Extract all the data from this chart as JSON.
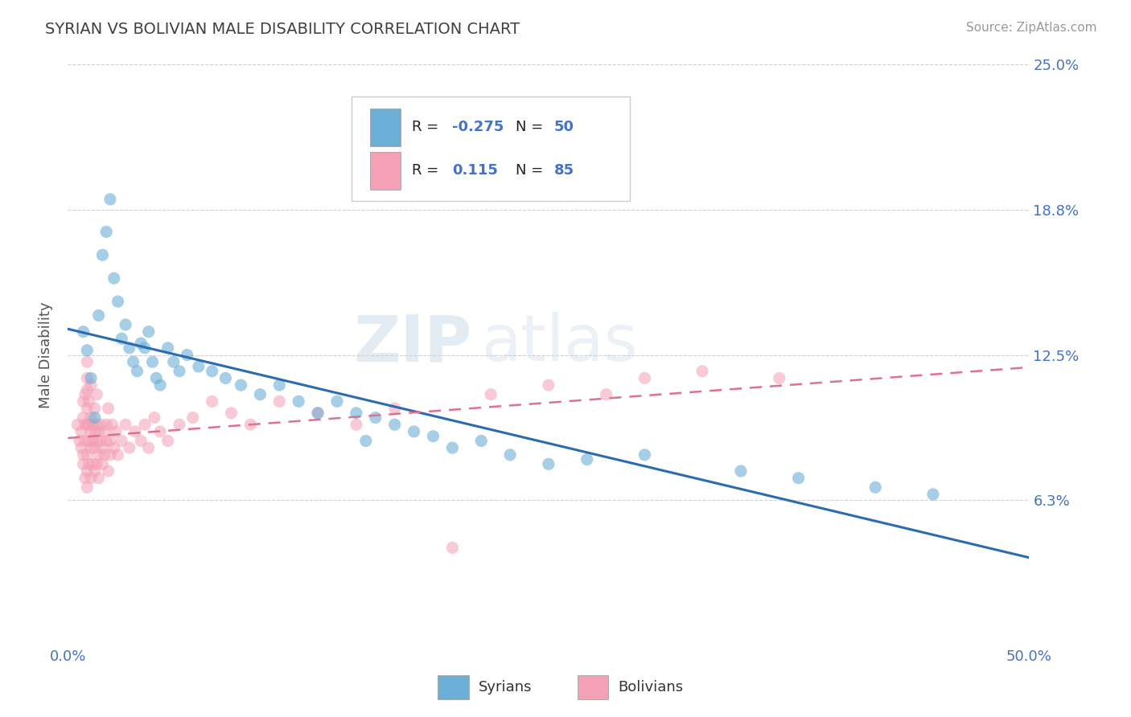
{
  "title": "SYRIAN VS BOLIVIAN MALE DISABILITY CORRELATION CHART",
  "source": "Source: ZipAtlas.com",
  "ylabel": "Male Disability",
  "xlim": [
    0,
    0.5
  ],
  "ylim": [
    0,
    0.25
  ],
  "xticks": [
    0.0,
    0.1,
    0.2,
    0.3,
    0.4,
    0.5
  ],
  "yticks": [
    0.0,
    0.0625,
    0.125,
    0.1875,
    0.25
  ],
  "ytick_labels_right": [
    "",
    "6.3%",
    "12.5%",
    "18.8%",
    "25.0%"
  ],
  "syrian_R": -0.275,
  "syrian_N": 50,
  "bolivian_R": 0.115,
  "bolivian_N": 85,
  "syrian_color": "#6baed6",
  "bolivian_color": "#f4a0b5",
  "syrian_scatter": [
    [
      0.008,
      0.135
    ],
    [
      0.01,
      0.127
    ],
    [
      0.012,
      0.115
    ],
    [
      0.014,
      0.098
    ],
    [
      0.016,
      0.142
    ],
    [
      0.018,
      0.168
    ],
    [
      0.02,
      0.178
    ],
    [
      0.022,
      0.192
    ],
    [
      0.024,
      0.158
    ],
    [
      0.026,
      0.148
    ],
    [
      0.028,
      0.132
    ],
    [
      0.03,
      0.138
    ],
    [
      0.032,
      0.128
    ],
    [
      0.034,
      0.122
    ],
    [
      0.036,
      0.118
    ],
    [
      0.038,
      0.13
    ],
    [
      0.04,
      0.128
    ],
    [
      0.042,
      0.135
    ],
    [
      0.044,
      0.122
    ],
    [
      0.046,
      0.115
    ],
    [
      0.048,
      0.112
    ],
    [
      0.052,
      0.128
    ],
    [
      0.055,
      0.122
    ],
    [
      0.058,
      0.118
    ],
    [
      0.062,
      0.125
    ],
    [
      0.068,
      0.12
    ],
    [
      0.075,
      0.118
    ],
    [
      0.082,
      0.115
    ],
    [
      0.09,
      0.112
    ],
    [
      0.1,
      0.108
    ],
    [
      0.11,
      0.112
    ],
    [
      0.12,
      0.105
    ],
    [
      0.13,
      0.1
    ],
    [
      0.14,
      0.105
    ],
    [
      0.15,
      0.1
    ],
    [
      0.155,
      0.088
    ],
    [
      0.16,
      0.098
    ],
    [
      0.17,
      0.095
    ],
    [
      0.18,
      0.092
    ],
    [
      0.19,
      0.09
    ],
    [
      0.2,
      0.085
    ],
    [
      0.215,
      0.088
    ],
    [
      0.23,
      0.082
    ],
    [
      0.25,
      0.078
    ],
    [
      0.27,
      0.08
    ],
    [
      0.3,
      0.082
    ],
    [
      0.35,
      0.075
    ],
    [
      0.38,
      0.072
    ],
    [
      0.42,
      0.068
    ],
    [
      0.45,
      0.065
    ]
  ],
  "bolivian_scatter": [
    [
      0.005,
      0.095
    ],
    [
      0.006,
      0.088
    ],
    [
      0.007,
      0.085
    ],
    [
      0.007,
      0.092
    ],
    [
      0.008,
      0.078
    ],
    [
      0.008,
      0.082
    ],
    [
      0.008,
      0.098
    ],
    [
      0.008,
      0.105
    ],
    [
      0.009,
      0.088
    ],
    [
      0.009,
      0.095
    ],
    [
      0.009,
      0.072
    ],
    [
      0.009,
      0.108
    ],
    [
      0.01,
      0.082
    ],
    [
      0.01,
      0.075
    ],
    [
      0.01,
      0.095
    ],
    [
      0.01,
      0.102
    ],
    [
      0.01,
      0.11
    ],
    [
      0.01,
      0.068
    ],
    [
      0.01,
      0.115
    ],
    [
      0.01,
      0.122
    ],
    [
      0.011,
      0.088
    ],
    [
      0.011,
      0.095
    ],
    [
      0.011,
      0.078
    ],
    [
      0.011,
      0.105
    ],
    [
      0.012,
      0.092
    ],
    [
      0.012,
      0.085
    ],
    [
      0.012,
      0.098
    ],
    [
      0.012,
      0.112
    ],
    [
      0.012,
      0.072
    ],
    [
      0.013,
      0.088
    ],
    [
      0.013,
      0.095
    ],
    [
      0.013,
      0.078
    ],
    [
      0.014,
      0.092
    ],
    [
      0.014,
      0.085
    ],
    [
      0.014,
      0.102
    ],
    [
      0.014,
      0.075
    ],
    [
      0.015,
      0.088
    ],
    [
      0.015,
      0.095
    ],
    [
      0.015,
      0.078
    ],
    [
      0.015,
      0.108
    ],
    [
      0.016,
      0.082
    ],
    [
      0.016,
      0.092
    ],
    [
      0.016,
      0.072
    ],
    [
      0.017,
      0.088
    ],
    [
      0.017,
      0.095
    ],
    [
      0.018,
      0.085
    ],
    [
      0.018,
      0.078
    ],
    [
      0.019,
      0.092
    ],
    [
      0.019,
      0.082
    ],
    [
      0.02,
      0.088
    ],
    [
      0.02,
      0.095
    ],
    [
      0.021,
      0.102
    ],
    [
      0.021,
      0.075
    ],
    [
      0.022,
      0.088
    ],
    [
      0.022,
      0.082
    ],
    [
      0.023,
      0.095
    ],
    [
      0.024,
      0.085
    ],
    [
      0.025,
      0.092
    ],
    [
      0.026,
      0.082
    ],
    [
      0.028,
      0.088
    ],
    [
      0.03,
      0.095
    ],
    [
      0.032,
      0.085
    ],
    [
      0.035,
      0.092
    ],
    [
      0.038,
      0.088
    ],
    [
      0.04,
      0.095
    ],
    [
      0.042,
      0.085
    ],
    [
      0.045,
      0.098
    ],
    [
      0.048,
      0.092
    ],
    [
      0.052,
      0.088
    ],
    [
      0.058,
      0.095
    ],
    [
      0.065,
      0.098
    ],
    [
      0.075,
      0.105
    ],
    [
      0.085,
      0.1
    ],
    [
      0.095,
      0.095
    ],
    [
      0.11,
      0.105
    ],
    [
      0.13,
      0.1
    ],
    [
      0.15,
      0.095
    ],
    [
      0.17,
      0.102
    ],
    [
      0.2,
      0.042
    ],
    [
      0.22,
      0.108
    ],
    [
      0.25,
      0.112
    ],
    [
      0.28,
      0.108
    ],
    [
      0.3,
      0.115
    ],
    [
      0.33,
      0.118
    ],
    [
      0.37,
      0.115
    ]
  ],
  "background_color": "#ffffff",
  "grid_color": "#d0d0d0",
  "title_color": "#404040",
  "axis_label_color": "#555555",
  "tick_label_color": "#4472c4"
}
